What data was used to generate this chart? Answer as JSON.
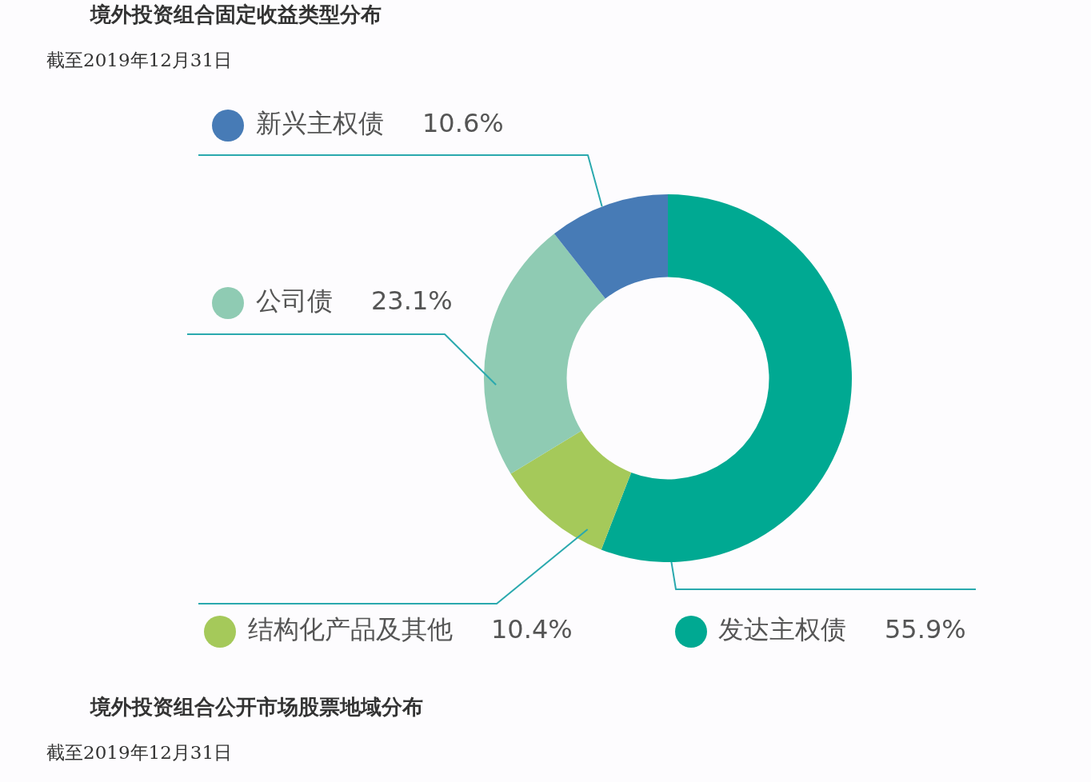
{
  "chart_data": {
    "type": "donut",
    "title": "境外投资组合固定收益类型分布",
    "subtitle": "截至2019年12月31日",
    "categories": [
      "发达主权债",
      "结构化产品及其他",
      "公司债",
      "新兴主权债"
    ],
    "values": [
      55.9,
      10.4,
      23.1,
      10.6
    ],
    "value_labels": [
      "55.9%",
      "10.4%",
      "23.1%",
      "10.6%"
    ],
    "colors": [
      "#00a992",
      "#a5c95a",
      "#8fcbb3",
      "#477bb6"
    ],
    "legend": "left",
    "annotations": [
      "境外投资组合公开市场股票地域分布",
      "截至2019年12月31日"
    ]
  }
}
